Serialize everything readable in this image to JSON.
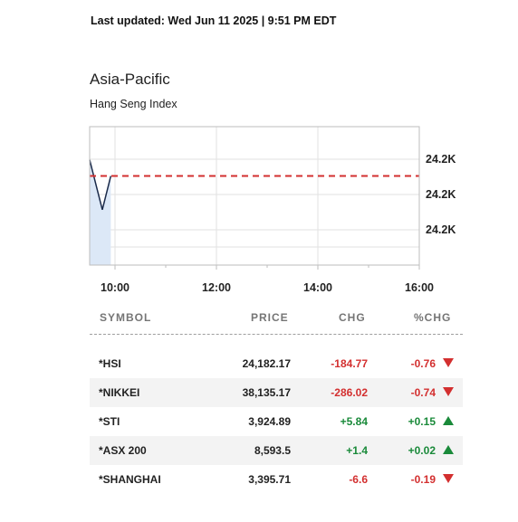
{
  "header": {
    "last_updated": "Last updated: Wed Jun 11 2025 | 9:51 PM EDT"
  },
  "region": {
    "title": "Asia-Pacific",
    "index_name": "Hang Seng Index"
  },
  "colors": {
    "up": "#1a8a3a",
    "down": "#d32f2f",
    "reference_line": "#d32f2f",
    "line": "#1a2a4a",
    "area": "#dce8f7"
  },
  "chart_data": {
    "type": "area",
    "x": [
      "09:30",
      "09:45",
      "09:55"
    ],
    "y": [
      24188,
      24170,
      24182.17
    ],
    "reference_value": 24182.17,
    "ytick_labels": [
      "24.2K",
      "24.2K",
      "24.2K"
    ],
    "xtick_labels": [
      "10:00",
      "12:00",
      "14:00",
      "16:00"
    ],
    "grid": true
  },
  "table": {
    "headers": {
      "symbol": "SYMBOL",
      "price": "PRICE",
      "chg": "CHG",
      "pct": "%CHG"
    },
    "rows": [
      {
        "symbol": "*HSI",
        "price": "24,182.17",
        "chg": "-184.77",
        "pct": "-0.76",
        "direction": "down"
      },
      {
        "symbol": "*NIKKEI",
        "price": "38,135.17",
        "chg": "-286.02",
        "pct": "-0.74",
        "direction": "down"
      },
      {
        "symbol": "*STI",
        "price": "3,924.89",
        "chg": "+5.84",
        "pct": "+0.15",
        "direction": "up"
      },
      {
        "symbol": "*ASX 200",
        "price": "8,593.5",
        "chg": "+1.4",
        "pct": "+0.02",
        "direction": "up"
      },
      {
        "symbol": "*SHANGHAI",
        "price": "3,395.71",
        "chg": "-6.6",
        "pct": "-0.19",
        "direction": "down"
      }
    ]
  }
}
